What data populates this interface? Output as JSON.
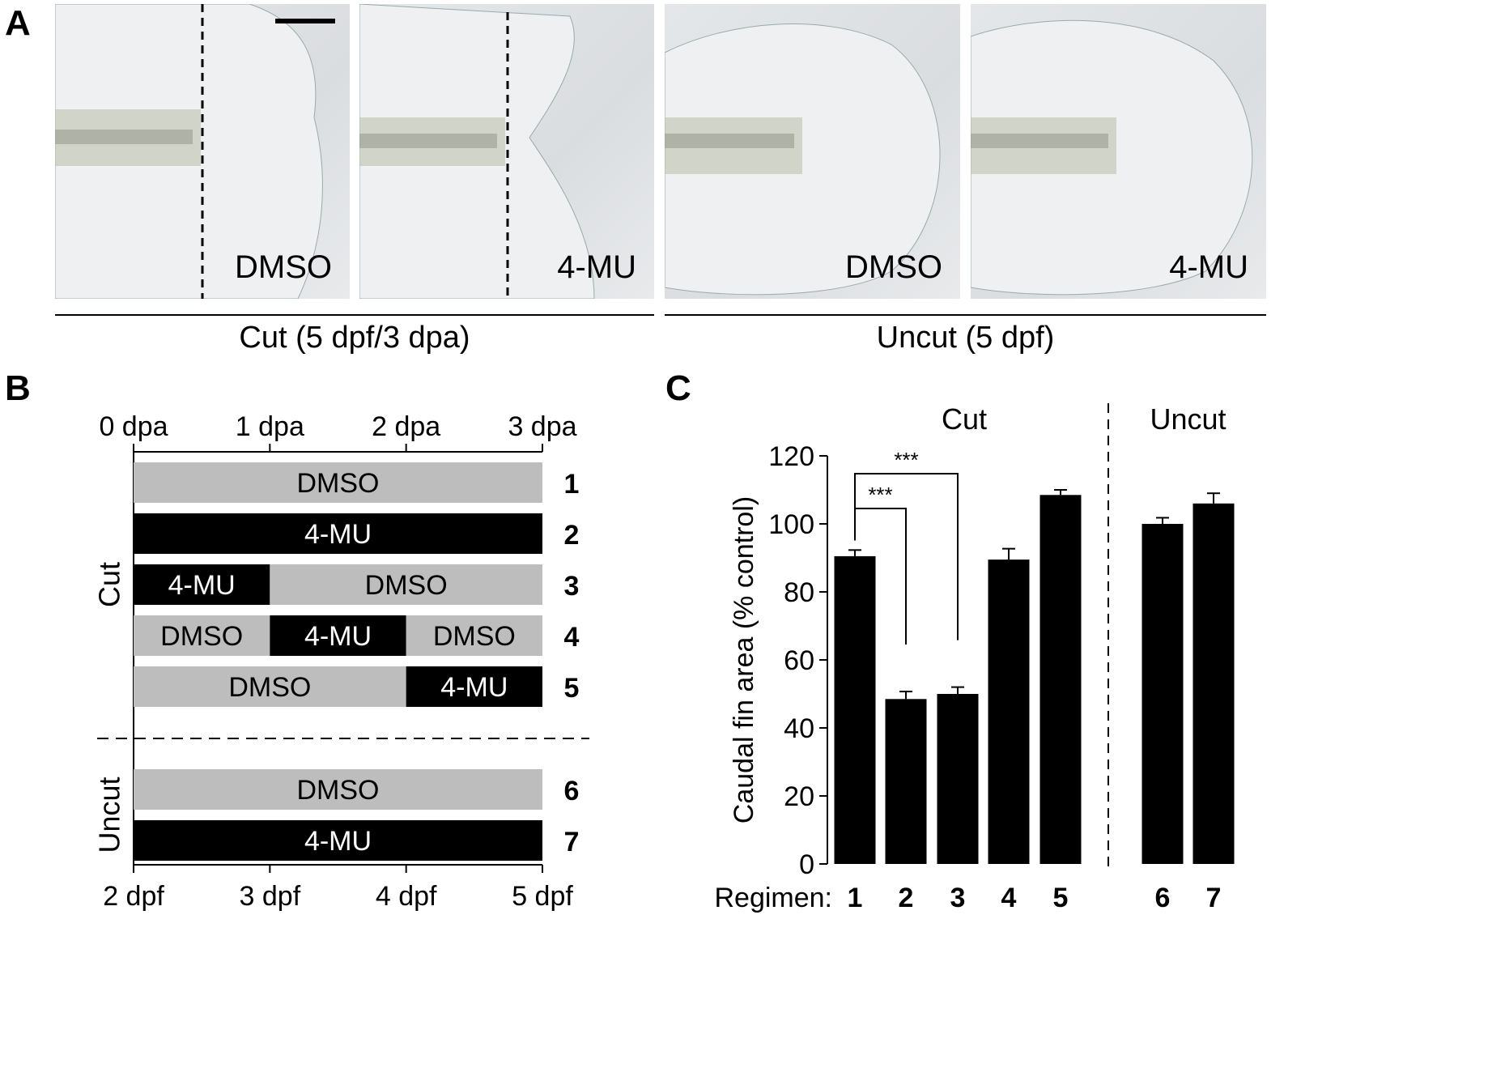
{
  "panels": {
    "a": "A",
    "b": "B",
    "c": "C"
  },
  "panel_a": {
    "images": [
      {
        "label": "DMSO",
        "type": "cut"
      },
      {
        "label": "4-MU",
        "type": "cut"
      },
      {
        "label": "DMSO",
        "type": "uncut"
      },
      {
        "label": "4-MU",
        "type": "uncut"
      }
    ],
    "groups": [
      "Cut (5 dpf/3 dpa)",
      "Uncut (5 dpf)"
    ]
  },
  "chart_data": [
    {
      "type": "timeline",
      "top_ticks": [
        "0 dpa",
        "1 dpa",
        "2 dpa",
        "3 dpa"
      ],
      "bottom_ticks": [
        "2 dpf",
        "3 dpf",
        "4 dpf",
        "5 dpf"
      ],
      "group_labels": [
        "Cut",
        "Uncut"
      ],
      "regimens": [
        {
          "id": "1",
          "group": "Cut",
          "segments": [
            {
              "label": "DMSO",
              "start": 0,
              "end": 3
            }
          ]
        },
        {
          "id": "2",
          "group": "Cut",
          "segments": [
            {
              "label": "4-MU",
              "start": 0,
              "end": 3
            }
          ]
        },
        {
          "id": "3",
          "group": "Cut",
          "segments": [
            {
              "label": "4-MU",
              "start": 0,
              "end": 1
            },
            {
              "label": "DMSO",
              "start": 1,
              "end": 3
            }
          ]
        },
        {
          "id": "4",
          "group": "Cut",
          "segments": [
            {
              "label": "DMSO",
              "start": 0,
              "end": 1
            },
            {
              "label": "4-MU",
              "start": 1,
              "end": 2
            },
            {
              "label": "DMSO",
              "start": 2,
              "end": 3
            }
          ]
        },
        {
          "id": "5",
          "group": "Cut",
          "segments": [
            {
              "label": "DMSO",
              "start": 0,
              "end": 2
            },
            {
              "label": "4-MU",
              "start": 2,
              "end": 3
            }
          ]
        },
        {
          "id": "6",
          "group": "Uncut",
          "segments": [
            {
              "label": "DMSO",
              "start": 0,
              "end": 3
            }
          ]
        },
        {
          "id": "7",
          "group": "Uncut",
          "segments": [
            {
              "label": "4-MU",
              "start": 0,
              "end": 3
            }
          ]
        }
      ],
      "colors": {
        "DMSO": "#bdbdbd",
        "4-MU": "#000000"
      }
    },
    {
      "type": "bar",
      "categories": [
        "1",
        "2",
        "3",
        "4",
        "5",
        "6",
        "7"
      ],
      "values": [
        90.5,
        48.5,
        50,
        89.5,
        108.5,
        100,
        106
      ],
      "errors": [
        1.8,
        2.2,
        2.0,
        3.2,
        1.5,
        1.8,
        3.0
      ],
      "groups": [
        {
          "name": "Cut",
          "categories": [
            "1",
            "2",
            "3",
            "4",
            "5"
          ]
        },
        {
          "name": "Uncut",
          "categories": [
            "6",
            "7"
          ]
        }
      ],
      "ylabel": "Caudal fin area (% control)",
      "xlabel": "Regimen:",
      "ylim": [
        0,
        120
      ],
      "yticks": [
        0,
        20,
        40,
        60,
        80,
        100,
        120
      ],
      "significance": [
        {
          "from": "1",
          "to": "2",
          "label": "***"
        },
        {
          "from": "1",
          "to": "3",
          "label": "***"
        }
      ],
      "bar_color": "#000000"
    }
  ]
}
